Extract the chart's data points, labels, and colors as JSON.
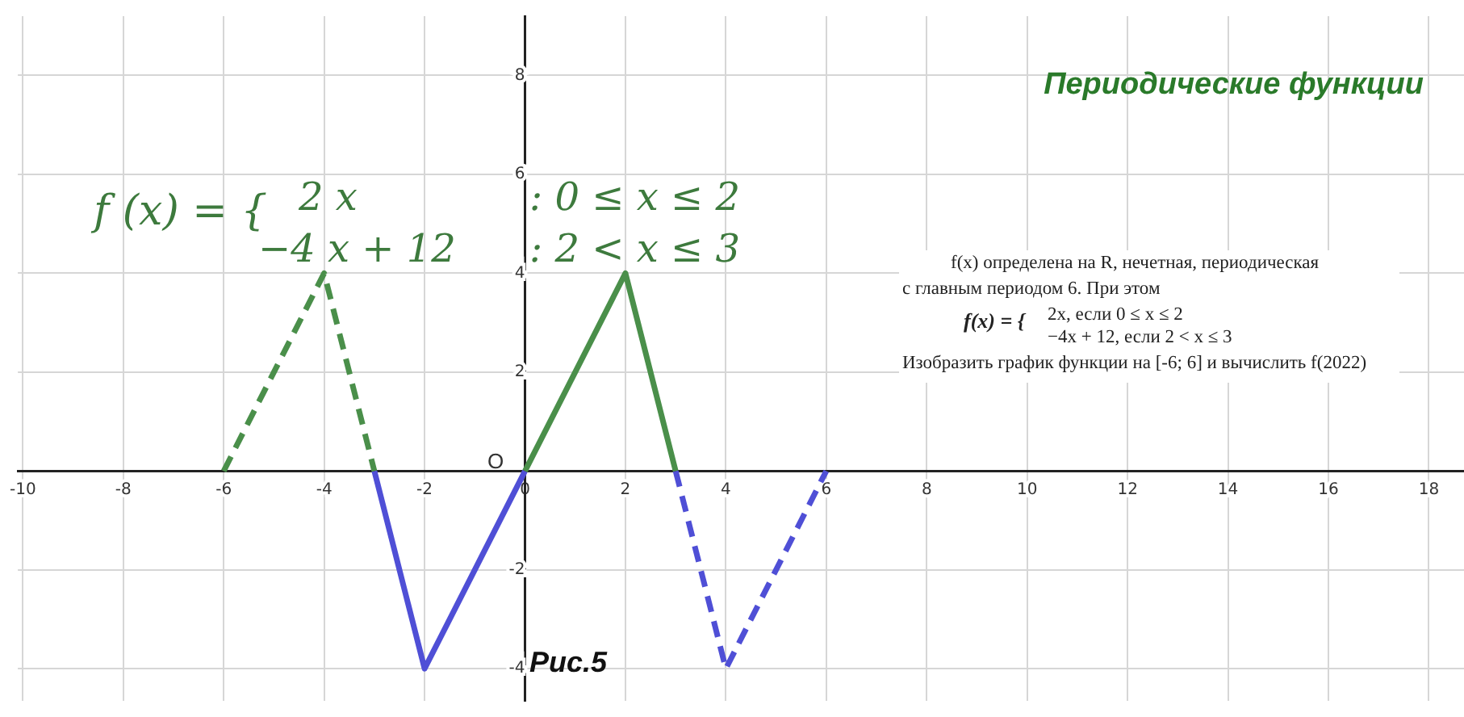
{
  "chart_data": {
    "type": "line",
    "title": "Периодические функции",
    "xlim": [
      -10.1,
      18.7
    ],
    "ylim": [
      -4.65,
      9.2
    ],
    "xticks": [
      -10,
      -8,
      -6,
      -4,
      -2,
      0,
      2,
      4,
      6,
      8,
      10,
      12,
      14,
      16,
      18
    ],
    "yticks": [
      -4,
      -2,
      {
        "value": 0,
        "label": null
      },
      2,
      4,
      6,
      8
    ],
    "grid": true,
    "legend": false,
    "marker": "none",
    "series": [
      {
        "color": "#4a8f4a",
        "line_style": "solid",
        "x": [
          0,
          2,
          3
        ],
        "values": [
          0,
          4,
          0
        ]
      },
      {
        "color": "#4a8f4a",
        "line_style": "dashed",
        "x": [
          -6,
          -4,
          -3
        ],
        "values": [
          0,
          4,
          0
        ]
      },
      {
        "color": "#4f4fd6",
        "line_style": "solid",
        "x": [
          -3,
          -2,
          0
        ],
        "values": [
          0,
          -4,
          0
        ]
      },
      {
        "color": "#4f4fd6",
        "line_style": "dashed",
        "x": [
          3,
          4,
          6
        ],
        "values": [
          0,
          -4,
          0
        ]
      }
    ],
    "annotations": [
      "f (x) = {",
      "2 x",
      ": 0 ≤ x ≤ 2",
      "−4 x + 12",
      ": 2 < x ≤ 3",
      "f(x) определена на R, нечетная, периодическая",
      "с главным периодом 6. При этом",
      "f(x) = {",
      "2x, если 0 ≤ x ≤ 2",
      "−4x + 12, если 2 < x ≤ 3",
      "Изобразить график функции на [-6; 6] и вычислить f(2022)",
      "Рис.5",
      "O"
    ]
  }
}
